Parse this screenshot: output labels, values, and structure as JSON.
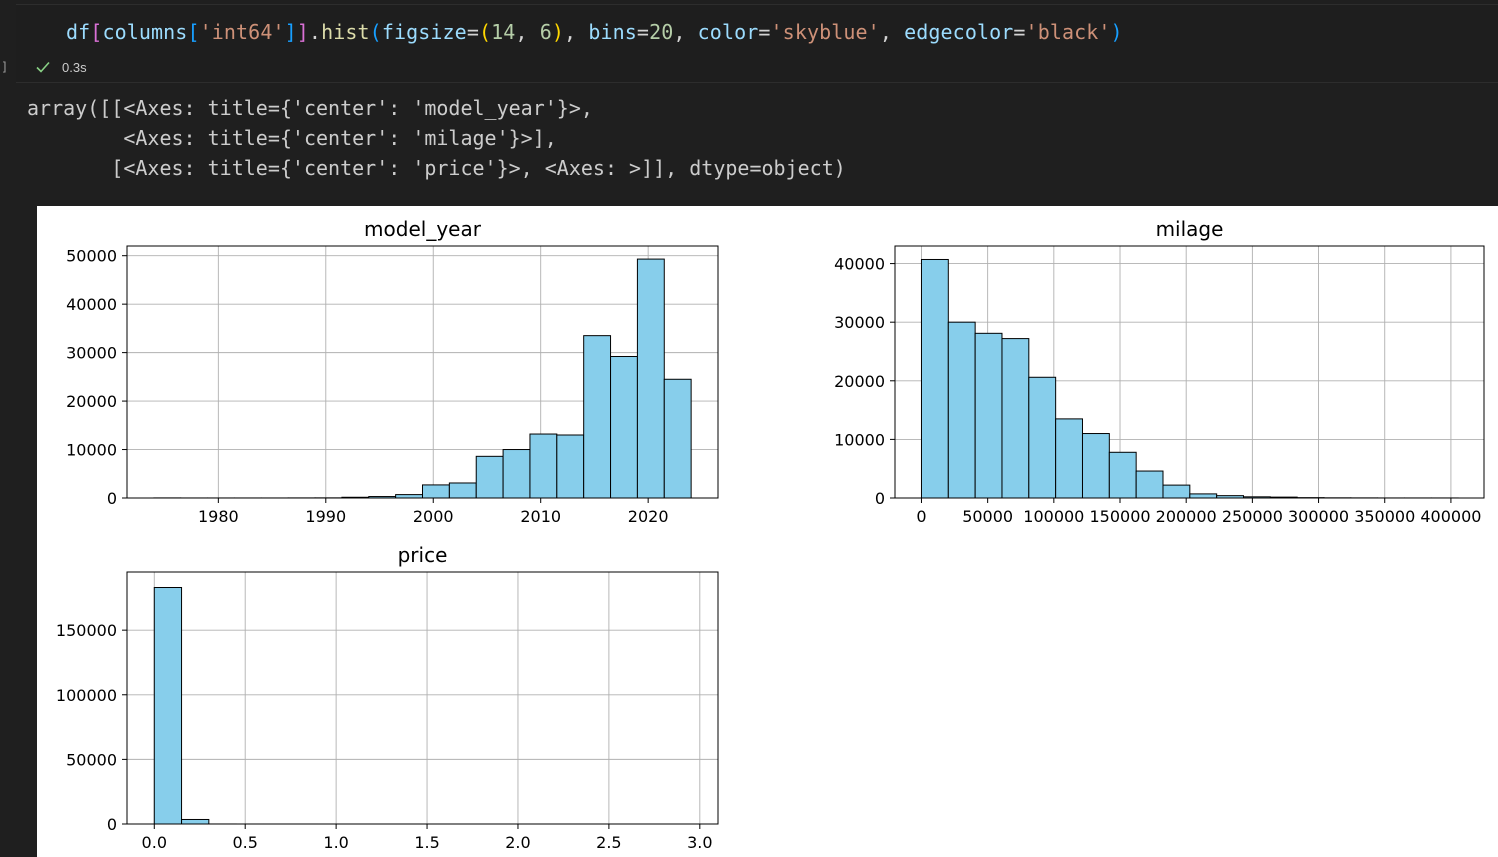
{
  "code_cell": {
    "tokens": [
      {
        "t": "df",
        "c": "c-var"
      },
      {
        "t": "[",
        "c": "c-par"
      },
      {
        "t": "columns",
        "c": "c-var"
      },
      {
        "t": "[",
        "c": "c-p3"
      },
      {
        "t": "'int64'",
        "c": "c-str"
      },
      {
        "t": "]",
        "c": "c-p3"
      },
      {
        "t": "]",
        "c": "c-par"
      },
      {
        "t": ".",
        "c": "c-op"
      },
      {
        "t": "hist",
        "c": "c-fn"
      },
      {
        "t": "(",
        "c": "c-p3"
      },
      {
        "t": "figsize",
        "c": "c-var"
      },
      {
        "t": "=",
        "c": "c-op"
      },
      {
        "t": "(",
        "c": "c-y"
      },
      {
        "t": "14",
        "c": "c-num"
      },
      {
        "t": ", ",
        "c": "c-op"
      },
      {
        "t": "6",
        "c": "c-num"
      },
      {
        "t": ")",
        "c": "c-y"
      },
      {
        "t": ", ",
        "c": "c-op"
      },
      {
        "t": "bins",
        "c": "c-var"
      },
      {
        "t": "=",
        "c": "c-op"
      },
      {
        "t": "20",
        "c": "c-num"
      },
      {
        "t": ", ",
        "c": "c-op"
      },
      {
        "t": "color",
        "c": "c-var"
      },
      {
        "t": "=",
        "c": "c-op"
      },
      {
        "t": "'skyblue'",
        "c": "c-str"
      },
      {
        "t": ", ",
        "c": "c-op"
      },
      {
        "t": "edgecolor",
        "c": "c-var"
      },
      {
        "t": "=",
        "c": "c-op"
      },
      {
        "t": "'black'",
        "c": "c-str"
      },
      {
        "t": ")",
        "c": "c-p3"
      }
    ],
    "bracket_label": "]",
    "status_icon": "check-icon",
    "status_color": "#89d185",
    "exec_time": "0.3s"
  },
  "output_text": "array([[<Axes: title={'center': 'model_year'}>,\n        <Axes: title={'center': 'milage'}>],\n       [<Axes: title={'center': 'price'}>, <Axes: >]], dtype=object)",
  "theme": {
    "background": "#1f1f1f",
    "bar_color": "#87ceeb",
    "edge_color": "#000000",
    "grid_color": "#b0b0b0"
  },
  "chart_data": [
    {
      "type": "bar",
      "title": "model_year",
      "xlim": [
        1971.5,
        2026.5
      ],
      "ylim": [
        0,
        52000
      ],
      "xticks": [
        {
          "v": 1980,
          "label": "1980"
        },
        {
          "v": 1990,
          "label": "1990"
        },
        {
          "v": 2000,
          "label": "2000"
        },
        {
          "v": 2010,
          "label": "2010"
        },
        {
          "v": 2020,
          "label": "2020"
        }
      ],
      "yticks": [
        {
          "v": 0,
          "label": "0"
        },
        {
          "v": 10000,
          "label": "10000"
        },
        {
          "v": 20000,
          "label": "20000"
        },
        {
          "v": 30000,
          "label": "30000"
        },
        {
          "v": 40000,
          "label": "40000"
        },
        {
          "v": 50000,
          "label": "50000"
        }
      ],
      "bin_edges": [
        1974,
        1976.5,
        1979,
        1981.5,
        1984,
        1986.5,
        1989,
        1991.5,
        1994,
        1996.5,
        1999,
        2001.5,
        2004,
        2006.5,
        2009,
        2011.5,
        2014,
        2016.5,
        2019,
        2021.5,
        2024
      ],
      "counts": [
        20,
        10,
        10,
        10,
        10,
        20,
        30,
        150,
        300,
        700,
        2700,
        3100,
        8600,
        10000,
        13200,
        13000,
        33500,
        29200,
        49300,
        24500
      ],
      "grid": true
    },
    {
      "type": "bar",
      "title": "milage",
      "xlim": [
        -20000,
        425000
      ],
      "ylim": [
        0,
        43000
      ],
      "xticks": [
        {
          "v": 0,
          "label": "0"
        },
        {
          "v": 50000,
          "label": "50000"
        },
        {
          "v": 100000,
          "label": "100000"
        },
        {
          "v": 150000,
          "label": "150000"
        },
        {
          "v": 200000,
          "label": "200000"
        },
        {
          "v": 250000,
          "label": "250000"
        },
        {
          "v": 300000,
          "label": "300000"
        },
        {
          "v": 350000,
          "label": "350000"
        },
        {
          "v": 400000,
          "label": "400000"
        }
      ],
      "yticks": [
        {
          "v": 0,
          "label": "0"
        },
        {
          "v": 10000,
          "label": "10000"
        },
        {
          "v": 20000,
          "label": "20000"
        },
        {
          "v": 30000,
          "label": "30000"
        },
        {
          "v": 40000,
          "label": "40000"
        }
      ],
      "bin_edges": [
        0,
        20275,
        40550,
        60825,
        81100,
        101375,
        121650,
        141925,
        162200,
        182475,
        202750,
        223025,
        243300,
        263575,
        283850,
        304125,
        324400,
        344675,
        364950,
        385225,
        405500
      ],
      "counts": [
        40700,
        30000,
        28100,
        27200,
        20600,
        13500,
        11000,
        7800,
        4600,
        2200,
        700,
        400,
        200,
        150,
        60,
        30,
        20,
        10,
        10,
        10
      ],
      "grid": true
    },
    {
      "type": "bar",
      "title": "price",
      "xlim": [
        -0.15,
        3.1
      ],
      "ylim": [
        0,
        195000
      ],
      "xticks": [
        {
          "v": 0,
          "label": "0.0"
        },
        {
          "v": 0.5,
          "label": "0.5"
        },
        {
          "v": 1,
          "label": "1.0"
        },
        {
          "v": 1.5,
          "label": "1.5"
        },
        {
          "v": 2,
          "label": "2.0"
        },
        {
          "v": 2.5,
          "label": "2.5"
        },
        {
          "v": 3,
          "label": "3.0"
        }
      ],
      "yticks": [
        {
          "v": 0,
          "label": "0"
        },
        {
          "v": 50000,
          "label": "50000"
        },
        {
          "v": 100000,
          "label": "100000"
        },
        {
          "v": 150000,
          "label": "150000"
        }
      ],
      "bin_edges": [
        0,
        0.15,
        0.3,
        0.45,
        0.6,
        0.75,
        0.9,
        1.05,
        1.2,
        1.35,
        1.5,
        1.65,
        1.8,
        1.95,
        2.1,
        2.25,
        2.4,
        2.55,
        2.7,
        2.85,
        3.0
      ],
      "counts": [
        183000,
        3500,
        20,
        5,
        3,
        2,
        1,
        1,
        1,
        1,
        1,
        1,
        1,
        1,
        1,
        1,
        1,
        1,
        1,
        1
      ],
      "grid": true
    }
  ]
}
